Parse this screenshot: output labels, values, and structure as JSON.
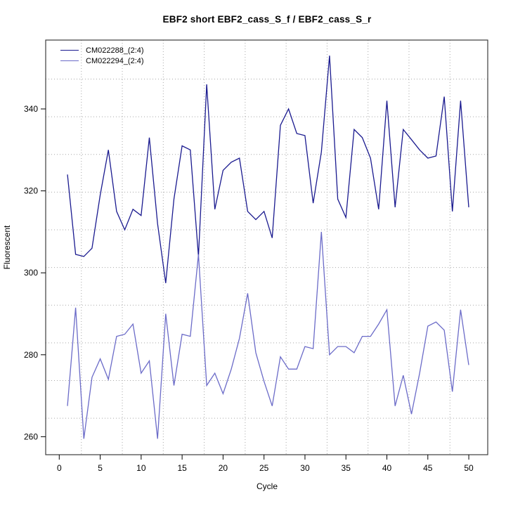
{
  "title": "EBF2 short EBF2_cass_S_f / EBF2_cass_S_r",
  "axes": {
    "x_label": "Cycle",
    "y_label": "Fluorescent",
    "x_ticks": [
      0,
      5,
      10,
      15,
      20,
      25,
      30,
      35,
      40,
      45,
      50
    ],
    "y_ticks": [
      260,
      280,
      300,
      320,
      340
    ]
  },
  "legend": {
    "items": [
      {
        "label": "CM022288_(2:4)",
        "color": "#1a1a8f"
      },
      {
        "label": "CM022294_(2:4)",
        "color": "#6b6bc8"
      }
    ]
  },
  "colors": {
    "series1": "#1a1a8f",
    "series2": "#6b6bc8",
    "grid": "#a8a8a8",
    "box": "#3c3c3c",
    "tick": "#000000",
    "background": "#ffffff"
  },
  "chart_data": {
    "type": "line",
    "title": "EBF2 short EBF2_cass_S_f / EBF2_cass_S_r",
    "xlabel": "Cycle",
    "ylabel": "Fluorescent",
    "xlim": [
      -1.5,
      52
    ],
    "ylim": [
      256,
      357
    ],
    "grid": "dotted, offset from ticks",
    "legend_position": "top-left inside plot",
    "x": [
      1,
      2,
      3,
      4,
      5,
      6,
      7,
      8,
      9,
      10,
      11,
      12,
      13,
      14,
      15,
      16,
      17,
      18,
      19,
      20,
      21,
      22,
      23,
      24,
      25,
      26,
      27,
      28,
      29,
      30,
      31,
      32,
      33,
      34,
      35,
      36,
      37,
      38,
      39,
      40,
      41,
      42,
      43,
      44,
      45,
      46,
      47,
      48,
      49,
      50
    ],
    "grid_x_cycles": [
      2.7,
      7.7,
      12.7,
      17.7,
      22.7,
      27.7,
      32.7,
      37.7,
      42.7,
      47.7
    ],
    "grid_y_values": [
      347.3,
      338.1,
      328.9,
      319.7,
      310.5,
      301.3,
      292.1,
      282.9,
      273.7,
      264.5
    ],
    "series": [
      {
        "name": "CM022288_(2:4)",
        "values": [
          324,
          304.5,
          304,
          306,
          319,
          330,
          315,
          310.5,
          315.5,
          314,
          333,
          312,
          297.5,
          318,
          331,
          330,
          304,
          346,
          315.5,
          325,
          327,
          328,
          315,
          313,
          315,
          308.5,
          336,
          340,
          334,
          333.5,
          317,
          329.5,
          353,
          318,
          313.5,
          335,
          333,
          328,
          315.5,
          342,
          316,
          335,
          332.5,
          330,
          328,
          328.5,
          343,
          315,
          342,
          316
        ]
      },
      {
        "name": "CM022294_(2:4)",
        "values": [
          267.5,
          291.5,
          259.5,
          274.5,
          279,
          274,
          284.5,
          285,
          287.5,
          275.5,
          278.5,
          259.5,
          290,
          272.5,
          285,
          284.5,
          304.5,
          272.5,
          275.5,
          270.5,
          276.5,
          284,
          295,
          280.5,
          273.5,
          267.5,
          279.5,
          276.5,
          276.5,
          282,
          281.5,
          310,
          280,
          282,
          282,
          280.5,
          284.5,
          284.5,
          287.5,
          291,
          267.5,
          275,
          265.5,
          275.5,
          287,
          288,
          286,
          271,
          291,
          277.5
        ]
      }
    ]
  }
}
